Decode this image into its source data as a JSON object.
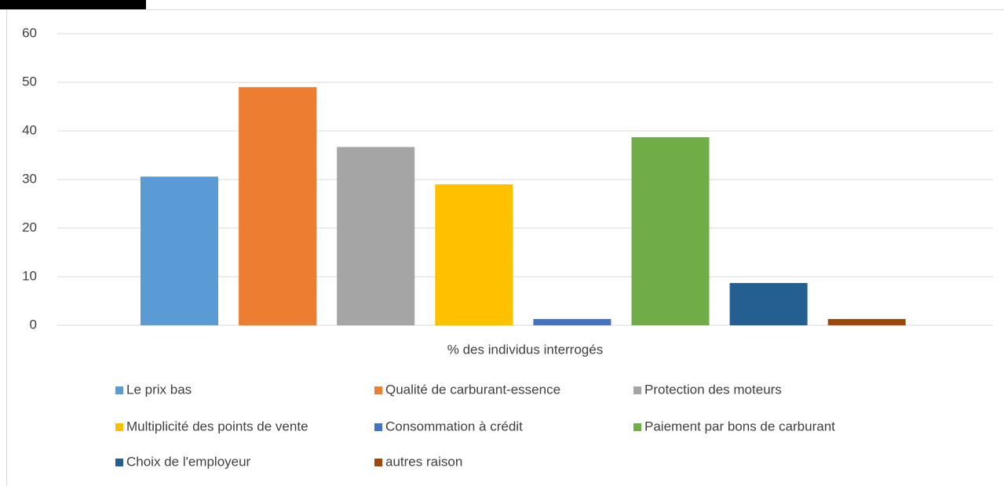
{
  "chart_data": {
    "type": "bar",
    "categories": [
      "% des individus interrogés"
    ],
    "series": [
      {
        "name": "Le prix bas",
        "color": "#5b9bd5",
        "values": [
          30.6
        ]
      },
      {
        "name": "Qualité de carburant-essence",
        "color": "#ed7d31",
        "values": [
          49
        ]
      },
      {
        "name": "Protection des moteurs",
        "color": "#a5a5a5",
        "values": [
          36.7
        ]
      },
      {
        "name": "Multiplicité des points de vente",
        "color": "#ffc000",
        "values": [
          29
        ]
      },
      {
        "name": "Consommation à crédit",
        "color": "#4472c4",
        "values": [
          1.3
        ]
      },
      {
        "name": "Paiement par bons de carburant",
        "color": "#70ad47",
        "values": [
          38.7
        ]
      },
      {
        "name": "Choix de l'employeur",
        "color": "#255e91",
        "values": [
          8.7
        ]
      },
      {
        "name": "autres raison",
        "color": "#9e480e",
        "values": [
          1.3
        ]
      }
    ],
    "ylim": [
      0,
      60
    ],
    "yticks": [
      0,
      10,
      20,
      30,
      40,
      50,
      60
    ],
    "grid": true,
    "legend": "bottom"
  }
}
